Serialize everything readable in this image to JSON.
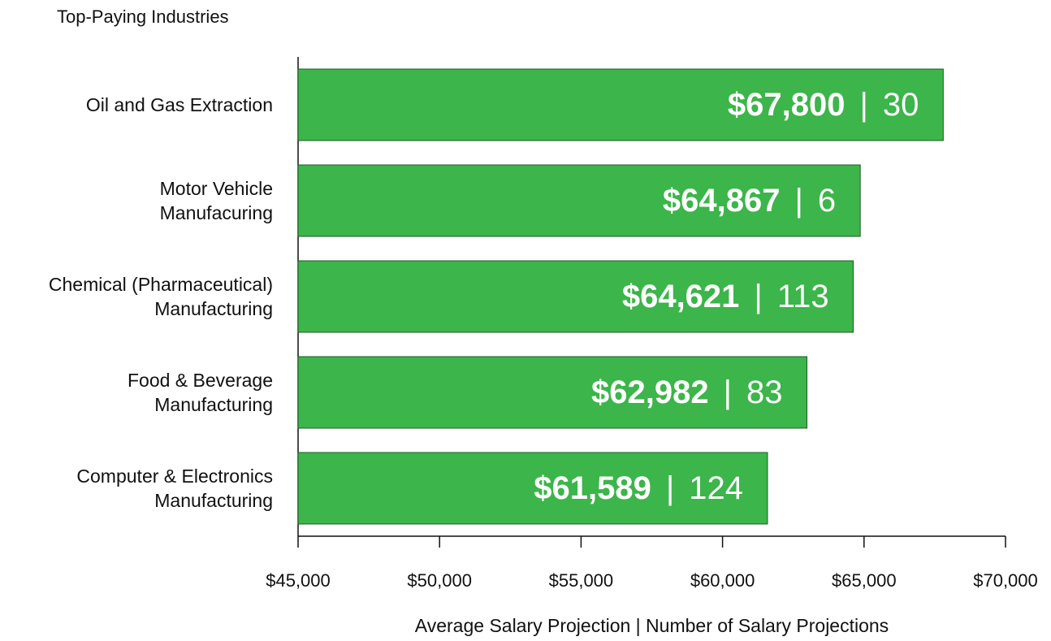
{
  "chart_data": {
    "type": "bar",
    "orientation": "horizontal",
    "title": "Top-Paying Industries",
    "xlabel": "Average Salary Projection | Number of Salary Projections",
    "categories": [
      "Oil and Gas Extraction",
      "Motor Vehicle\nManufacuring",
      "Chemical (Pharmaceutical)\nManufacturing",
      "Food & Beverage\nManufacturing",
      "Computer & Electronics\nManufacturing"
    ],
    "values": [
      67800,
      64867,
      64621,
      62982,
      61589
    ],
    "value_labels": [
      "$67,800",
      "$64,867",
      "$64,621",
      "$62,982",
      "$61,589"
    ],
    "counts": [
      30,
      6,
      113,
      83,
      124
    ],
    "label_separator": "|",
    "color": "#3cb54a",
    "xlim": [
      45000,
      70000
    ],
    "xticks": [
      {
        "value": 45000,
        "label": "$45,000"
      },
      {
        "value": 50000,
        "label": "$50,000"
      },
      {
        "value": 55000,
        "label": "$55,000"
      },
      {
        "value": 60000,
        "label": "$60,000"
      },
      {
        "value": 65000,
        "label": "$65,000"
      },
      {
        "value": 70000,
        "label": "$70,000"
      }
    ],
    "grid": false
  }
}
